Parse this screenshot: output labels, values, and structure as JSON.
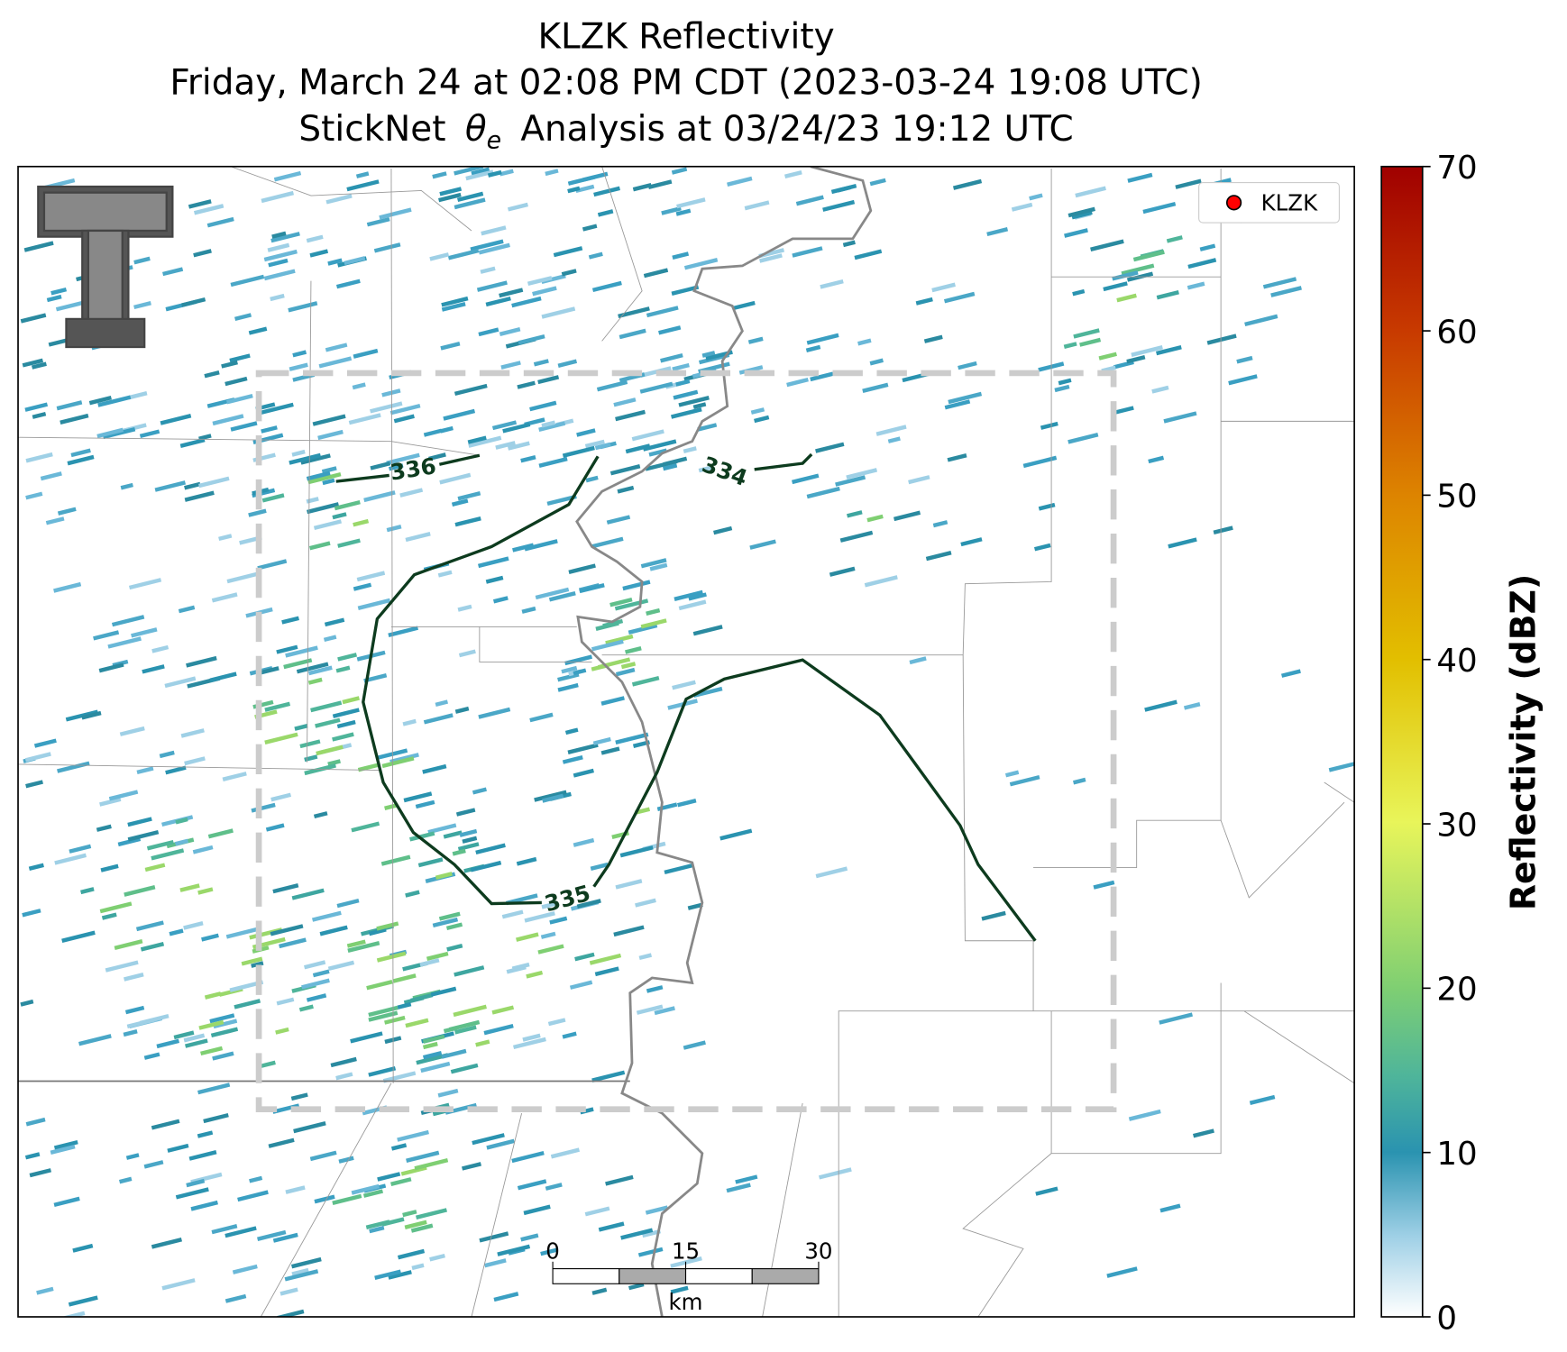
{
  "title": {
    "line1": "KLZK Reflectivity",
    "line2": "Friday, March 24 at 02:08 PM CDT (2023-03-24 19:08 UTC)",
    "line3": {
      "before": "StickNet",
      "symbol": "θ",
      "subscript": "e",
      "after": "Analysis at 03/24/23 19:12 UTC"
    }
  },
  "legend": {
    "label": "KLZK",
    "color": "#ff0000"
  },
  "contours": [
    {
      "label": "336"
    },
    {
      "label": "335"
    },
    {
      "label": "334"
    }
  ],
  "colorbar": {
    "label": "Reflectivity (dBZ)",
    "lim": [
      0,
      70
    ],
    "ticks": [
      0,
      10,
      20,
      30,
      40,
      50,
      60,
      70
    ]
  },
  "scale_bar": {
    "unit": "km",
    "lim": [
      0,
      30
    ],
    "ticks": [
      0,
      15,
      30
    ]
  }
}
